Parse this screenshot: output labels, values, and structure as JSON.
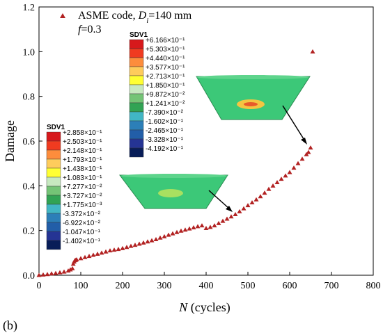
{
  "chart_data": {
    "type": "scatter",
    "panel_label": "(b)",
    "xlabel_italic": "N",
    "xlabel_rest": " (cycles)",
    "ylabel": "Damage",
    "xlim": [
      0,
      800
    ],
    "ylim": [
      0,
      1.2
    ],
    "x_ticks": [
      "0",
      "100",
      "200",
      "300",
      "400",
      "500",
      "600",
      "700",
      "800"
    ],
    "y_ticks": [
      "0.0",
      "0.2",
      "0.4",
      "0.6",
      "0.8",
      "1.0",
      "1.2"
    ],
    "legend": {
      "marker_color": "#b22222",
      "line1_a": "ASME code, ",
      "line1_italic": "D",
      "line1_sub": "i",
      "line1_b": "=140 mm",
      "line2_italic": "f",
      "line2_b": "=0.3",
      "placement": "top-left"
    },
    "series": [
      {
        "marker": "triangle",
        "color": "#b22222",
        "x": [
          0,
          10,
          20,
          30,
          40,
          50,
          60,
          70,
          75,
          80,
          82,
          84,
          86,
          88,
          90,
          100,
          110,
          120,
          130,
          140,
          150,
          160,
          170,
          180,
          190,
          200,
          210,
          220,
          230,
          240,
          250,
          260,
          270,
          280,
          290,
          300,
          310,
          320,
          330,
          340,
          350,
          360,
          370,
          380,
          390,
          400,
          410,
          420,
          430,
          440,
          450,
          460,
          470,
          480,
          490,
          500,
          510,
          520,
          530,
          540,
          550,
          560,
          570,
          580,
          590,
          600,
          610,
          620,
          630,
          640,
          645,
          650,
          655
        ],
        "y": [
          0.0,
          0.002,
          0.004,
          0.007,
          0.009,
          0.012,
          0.015,
          0.02,
          0.025,
          0.03,
          0.05,
          0.06,
          0.066,
          0.068,
          0.07,
          0.075,
          0.08,
          0.085,
          0.09,
          0.095,
          0.1,
          0.105,
          0.11,
          0.113,
          0.116,
          0.12,
          0.125,
          0.13,
          0.135,
          0.14,
          0.145,
          0.15,
          0.155,
          0.16,
          0.167,
          0.173,
          0.18,
          0.186,
          0.192,
          0.198,
          0.203,
          0.208,
          0.213,
          0.218,
          0.222,
          0.21,
          0.215,
          0.222,
          0.232,
          0.242,
          0.252,
          0.262,
          0.272,
          0.285,
          0.298,
          0.312,
          0.325,
          0.338,
          0.352,
          0.368,
          0.385,
          0.4,
          0.415,
          0.43,
          0.445,
          0.46,
          0.48,
          0.5,
          0.52,
          0.54,
          0.55,
          0.57,
          1.0
        ]
      }
    ],
    "colorbars": [
      {
        "title": "SDV1",
        "labels": [
          "+6.166×10⁻¹",
          "+5.303×10⁻¹",
          "+4.440×10⁻¹",
          "+3.577×10⁻¹",
          "+2.713×10⁻¹",
          "+1.850×10⁻¹",
          "+9.872×10⁻²",
          "+1.241×10⁻²",
          "-7.390×10⁻²",
          "-1.602×10⁻¹",
          "-2.465×10⁻¹",
          "-3.328×10⁻¹",
          "-4.192×10⁻¹"
        ]
      },
      {
        "title": "SDV1",
        "labels": [
          "+2.858×10⁻¹",
          "+2.503×10⁻¹",
          "+2.148×10⁻¹",
          "+1.793×10⁻¹",
          "+1.438×10⁻¹",
          "+1.083×10⁻¹",
          "+7.277×10⁻²",
          "+3.727×10⁻²",
          "+1.775×10⁻³",
          "-3.372×10⁻²",
          "-6.922×10⁻²",
          "-1.047×10⁻¹",
          "-1.402×10⁻¹"
        ]
      }
    ],
    "colormap": [
      "#d7191c",
      "#f03b20",
      "#fd8d3c",
      "#fecc5c",
      "#ffff33",
      "#c7e9c0",
      "#74c476",
      "#31a354",
      "#41b6c4",
      "#2c7fb8",
      "#225ea8",
      "#253494",
      "#081d58"
    ],
    "annotations": {
      "model_color": "#3cc878",
      "arrow_color": "#000000"
    }
  }
}
